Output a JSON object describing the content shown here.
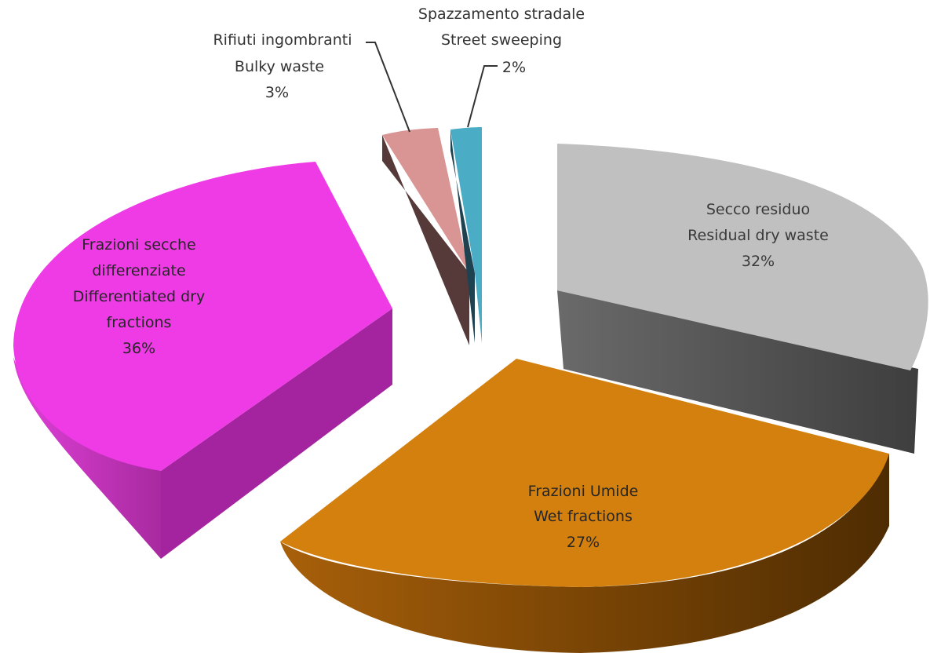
{
  "chart_data": {
    "type": "pie",
    "variant": "3d-exploded",
    "slices": [
      {
        "lines": [
          "Secco residuo",
          "Residual dry waste",
          "32%"
        ],
        "value": 32,
        "percent_label": "32%",
        "color": "#c0c0c0"
      },
      {
        "lines": [
          "Frazioni Umide",
          "Wet fractions",
          "27%"
        ],
        "value": 27,
        "percent_label": "27%",
        "color": "#d4800f"
      },
      {
        "lines": [
          "Frazioni secche",
          "differenziate",
          "Differentiated dry",
          "fractions",
          "36%"
        ],
        "value": 36,
        "percent_label": "36%",
        "color": "#ef3be6"
      },
      {
        "lines": [
          "Rifiuti ingombranti",
          "Bulky waste",
          "3%"
        ],
        "value": 3,
        "percent_label": "3%",
        "color": "#d99593"
      },
      {
        "lines": [
          "Spazzamento stradale",
          "Street sweeping",
          "2%"
        ],
        "value": 2,
        "percent_label": "2%",
        "color": "#4bacc6"
      }
    ]
  }
}
